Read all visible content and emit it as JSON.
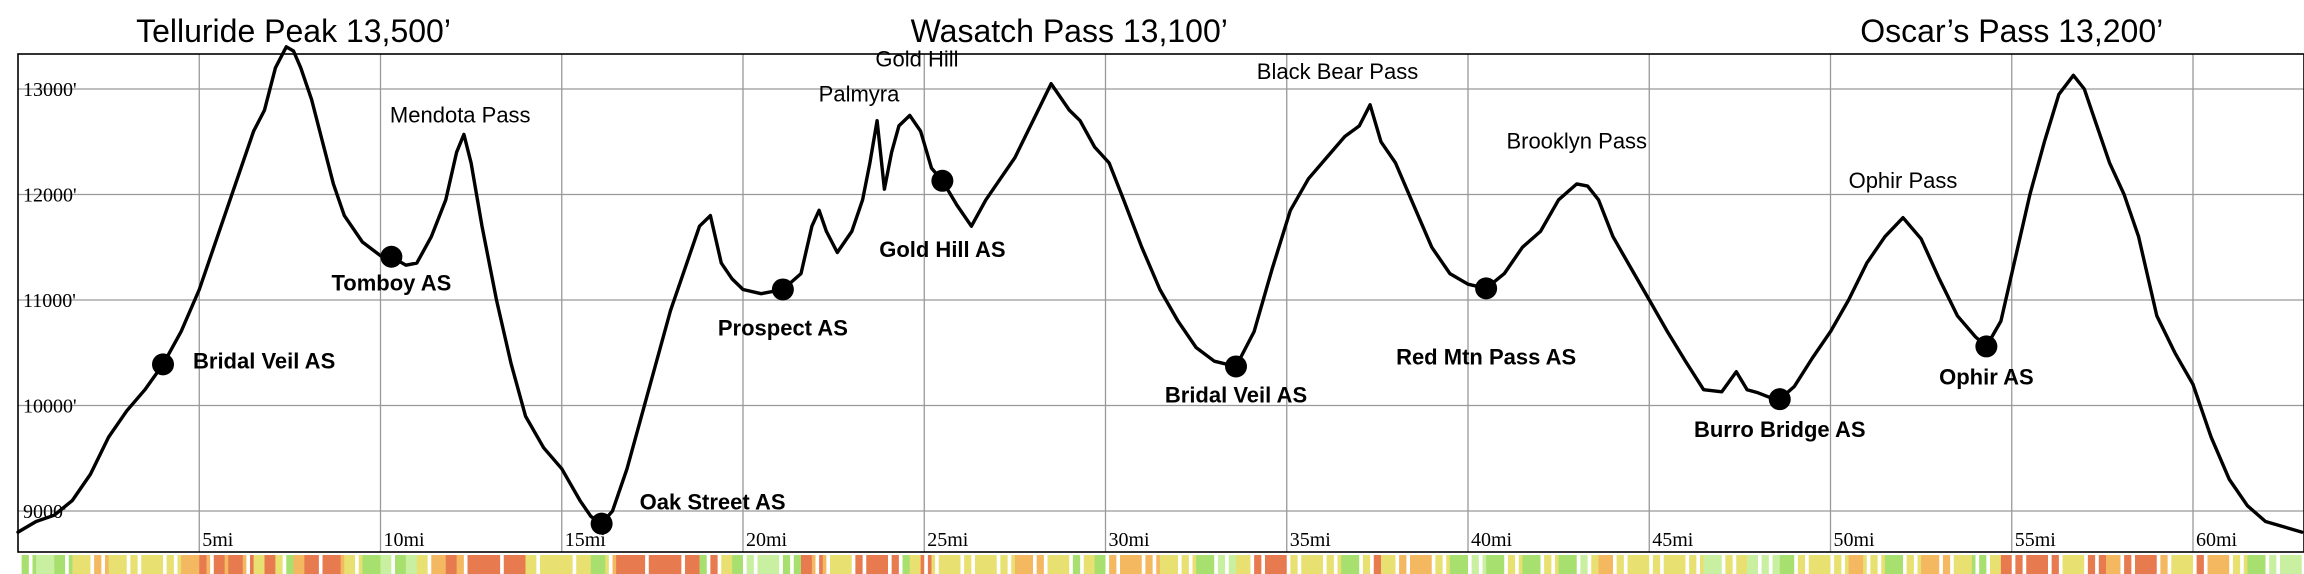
{
  "chart_data": {
    "type": "line",
    "xlabel": "",
    "ylabel": "",
    "xlim": [
      0,
      63.5
    ],
    "ylim": [
      8800,
      13500
    ],
    "grid": true,
    "x_ticks": [
      {
        "value": 5,
        "label": "5mi"
      },
      {
        "value": 10,
        "label": "10mi"
      },
      {
        "value": 15,
        "label": "15mi"
      },
      {
        "value": 20,
        "label": "20mi"
      },
      {
        "value": 25,
        "label": "25mi"
      },
      {
        "value": 30,
        "label": "30mi"
      },
      {
        "value": 35,
        "label": "35mi"
      },
      {
        "value": 40,
        "label": "40mi"
      },
      {
        "value": 45,
        "label": "45mi"
      },
      {
        "value": 50,
        "label": "50mi"
      },
      {
        "value": 55,
        "label": "55mi"
      },
      {
        "value": 60,
        "label": "60mi"
      }
    ],
    "y_ticks": [
      {
        "value": 9000,
        "label": "9000'"
      },
      {
        "value": 10000,
        "label": "10000'"
      },
      {
        "value": 11000,
        "label": "11000'"
      },
      {
        "value": 12000,
        "label": "12000'"
      },
      {
        "value": 13000,
        "label": "13000'"
      }
    ],
    "peak_titles": [
      {
        "text": "Telluride Peak 13,500’",
        "mile": 7.6
      },
      {
        "text": "Wasatch Pass 13,100’",
        "mile": 29.0
      },
      {
        "text": "Oscar’s Pass 13,200’",
        "mile": 55.0
      }
    ],
    "pass_labels": [
      {
        "text": "Mendota Pass",
        "mile": 12.2,
        "elev": 12570
      },
      {
        "text": "Palmyra",
        "mile": 23.2,
        "elev": 12770
      },
      {
        "text": "Gold Hill",
        "mile": 24.8,
        "elev": 13100
      },
      {
        "text": "Black Bear Pass",
        "mile": 36.4,
        "elev": 12980
      },
      {
        "text": "Brooklyn Pass",
        "mile": 43.0,
        "elev": 12320
      },
      {
        "text": "Ophir Pass",
        "mile": 52.0,
        "elev": 11950
      }
    ],
    "aid_stations": [
      {
        "name": "Bridal Veil AS",
        "mile": 4.0,
        "elev": 10390
      },
      {
        "name": "Tomboy AS",
        "mile": 10.3,
        "elev": 11410
      },
      {
        "name": "Oak Street AS",
        "mile": 16.1,
        "elev": 8880
      },
      {
        "name": "Prospect AS",
        "mile": 21.1,
        "elev": 11100
      },
      {
        "name": "Gold Hill AS",
        "mile": 25.5,
        "elev": 12130
      },
      {
        "name": "Bridal Veil AS",
        "mile": 33.6,
        "elev": 10370
      },
      {
        "name": "Red Mtn Pass AS",
        "mile": 40.5,
        "elev": 11110
      },
      {
        "name": "Burro Bridge AS",
        "mile": 48.6,
        "elev": 10060
      },
      {
        "name": "Ophir AS",
        "mile": 54.3,
        "elev": 10560
      }
    ],
    "series": [
      {
        "x": [
          0,
          0.5,
          1.0,
          1.5,
          2.0,
          2.5,
          3.0,
          3.5,
          4.0,
          4.5,
          5.0,
          5.5,
          6.0,
          6.5,
          6.8,
          7.1,
          7.4,
          7.6,
          7.8,
          8.1,
          8.4,
          8.7,
          9.0,
          9.5,
          10.0,
          10.3,
          10.7,
          11.0,
          11.4,
          11.8,
          12.1,
          12.3,
          12.5,
          12.8,
          13.2,
          13.6,
          14.0,
          14.5,
          15.0,
          15.5,
          15.8,
          16.1,
          16.4,
          16.8,
          17.2,
          17.6,
          18.0,
          18.4,
          18.8,
          19.1,
          19.4,
          19.7,
          20.0,
          20.5,
          21.1,
          21.6,
          21.9,
          22.1,
          22.3,
          22.6,
          23.0,
          23.3,
          23.5,
          23.7,
          23.9,
          24.1,
          24.3,
          24.6,
          24.9,
          25.2,
          25.5,
          25.9,
          26.3,
          26.7,
          27.1,
          27.5,
          28.0,
          28.5,
          29.0,
          29.3,
          29.7,
          30.1,
          30.5,
          31.0,
          31.5,
          32.0,
          32.5,
          33.0,
          33.6,
          34.1,
          34.6,
          35.1,
          35.6,
          36.1,
          36.6,
          37.0,
          37.3,
          37.6,
          38.0,
          38.5,
          39.0,
          39.5,
          40.0,
          40.5,
          41.0,
          41.5,
          42.0,
          42.5,
          43.0,
          43.3,
          43.6,
          44.0,
          44.5,
          45.0,
          45.5,
          46.0,
          46.5,
          47.0,
          47.4,
          47.7,
          48.0,
          48.3,
          48.6,
          49.0,
          49.5,
          50.0,
          50.5,
          51.0,
          51.5,
          52.0,
          52.5,
          53.0,
          53.5,
          54.0,
          54.3,
          54.7,
          55.1,
          55.5,
          55.9,
          56.3,
          56.7,
          57.0,
          57.3,
          57.7,
          58.1,
          58.5,
          59.0,
          59.5,
          60.0,
          60.5,
          61.0,
          61.5,
          62.0,
          62.5,
          63.0
        ],
        "values": [
          8800,
          8900,
          8960,
          9100,
          9350,
          9700,
          9950,
          10150,
          10390,
          10700,
          11100,
          11600,
          12100,
          12600,
          12800,
          13200,
          13400,
          13360,
          13200,
          12900,
          12500,
          12100,
          11800,
          11550,
          11420,
          11410,
          11330,
          11350,
          11600,
          11950,
          12400,
          12570,
          12300,
          11700,
          11000,
          10400,
          9900,
          9600,
          9400,
          9100,
          8950,
          8880,
          9000,
          9400,
          9900,
          10400,
          10900,
          11300,
          11700,
          11800,
          11350,
          11200,
          11100,
          11060,
          11100,
          11250,
          11700,
          11850,
          11650,
          11450,
          11650,
          11950,
          12300,
          12700,
          12050,
          12400,
          12650,
          12750,
          12600,
          12250,
          12130,
          11900,
          11700,
          11950,
          12150,
          12350,
          12700,
          13050,
          12800,
          12700,
          12450,
          12300,
          11950,
          11500,
          11100,
          10800,
          10550,
          10420,
          10370,
          10700,
          11300,
          11850,
          12150,
          12350,
          12550,
          12650,
          12850,
          12500,
          12300,
          11900,
          11500,
          11250,
          11150,
          11110,
          11250,
          11500,
          11650,
          11950,
          12100,
          12080,
          11950,
          11600,
          11300,
          11000,
          10700,
          10420,
          10150,
          10130,
          10320,
          10150,
          10120,
          10080,
          10060,
          10180,
          10450,
          10700,
          11000,
          11350,
          11600,
          11780,
          11580,
          11200,
          10850,
          10650,
          10560,
          10800,
          11400,
          12000,
          12500,
          12950,
          13130,
          13000,
          12700,
          12300,
          12000,
          11600,
          10850,
          10500,
          10200,
          9700,
          9300,
          9050,
          8900,
          8850,
          8800
        ]
      }
    ],
    "difficulty_bar": true
  }
}
